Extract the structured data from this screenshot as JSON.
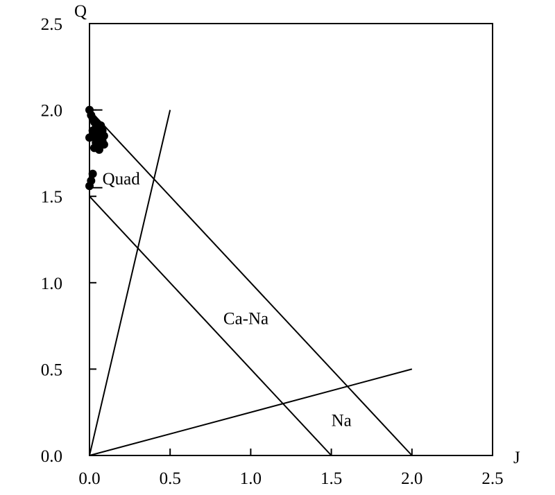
{
  "chart_data": {
    "type": "scatter",
    "title": "",
    "xlabel": "J",
    "ylabel": "Q",
    "xlim": [
      0,
      2.5
    ],
    "ylim": [
      0,
      2.5
    ],
    "x_ticks": [
      "0.0",
      "0.5",
      "1.0",
      "1.5",
      "2.0",
      "2.5"
    ],
    "y_ticks": [
      "0.0",
      "0.5",
      "1.0",
      "1.5",
      "2.0",
      "2.5"
    ],
    "grid": false,
    "legend": null,
    "points": [
      {
        "x": 0.0,
        "y": 2.0
      },
      {
        "x": 0.01,
        "y": 1.97
      },
      {
        "x": 0.02,
        "y": 1.95
      },
      {
        "x": 0.03,
        "y": 1.93
      },
      {
        "x": 0.05,
        "y": 1.92
      },
      {
        "x": 0.07,
        "y": 1.91
      },
      {
        "x": 0.04,
        "y": 1.9
      },
      {
        "x": 0.06,
        "y": 1.89
      },
      {
        "x": 0.08,
        "y": 1.88
      },
      {
        "x": 0.02,
        "y": 1.88
      },
      {
        "x": 0.05,
        "y": 1.87
      },
      {
        "x": 0.07,
        "y": 1.86
      },
      {
        "x": 0.09,
        "y": 1.85
      },
      {
        "x": 0.0,
        "y": 1.84
      },
      {
        "x": 0.03,
        "y": 1.84
      },
      {
        "x": 0.06,
        "y": 1.83
      },
      {
        "x": 0.08,
        "y": 1.82
      },
      {
        "x": 0.04,
        "y": 1.81
      },
      {
        "x": 0.07,
        "y": 1.8
      },
      {
        "x": 0.09,
        "y": 1.8
      },
      {
        "x": 0.05,
        "y": 1.79
      },
      {
        "x": 0.03,
        "y": 1.78
      },
      {
        "x": 0.06,
        "y": 1.77
      },
      {
        "x": 0.02,
        "y": 1.63
      },
      {
        "x": 0.01,
        "y": 1.59
      },
      {
        "x": 0.0,
        "y": 1.56
      }
    ],
    "lines": [
      {
        "from": [
          0,
          0
        ],
        "to": [
          0.5,
          2.0
        ]
      },
      {
        "from": [
          0,
          0
        ],
        "to": [
          2.0,
          0.5
        ]
      },
      {
        "from": [
          0,
          2.0
        ],
        "to": [
          2.0,
          0
        ]
      },
      {
        "from": [
          0,
          1.5
        ],
        "to": [
          1.5,
          0
        ]
      }
    ],
    "ticks_marks": [
      {
        "from": [
          0,
          2.0
        ],
        "to": [
          0.08,
          2.0
        ]
      },
      {
        "from": [
          0,
          1.55
        ],
        "to": [
          0.08,
          1.55
        ]
      }
    ],
    "region_labels": [
      {
        "text": "Quad",
        "x": 0.08,
        "y": 1.57
      },
      {
        "text": "Ca-Na",
        "x": 0.83,
        "y": 0.76
      },
      {
        "text": "Na",
        "x": 1.5,
        "y": 0.17
      }
    ]
  }
}
